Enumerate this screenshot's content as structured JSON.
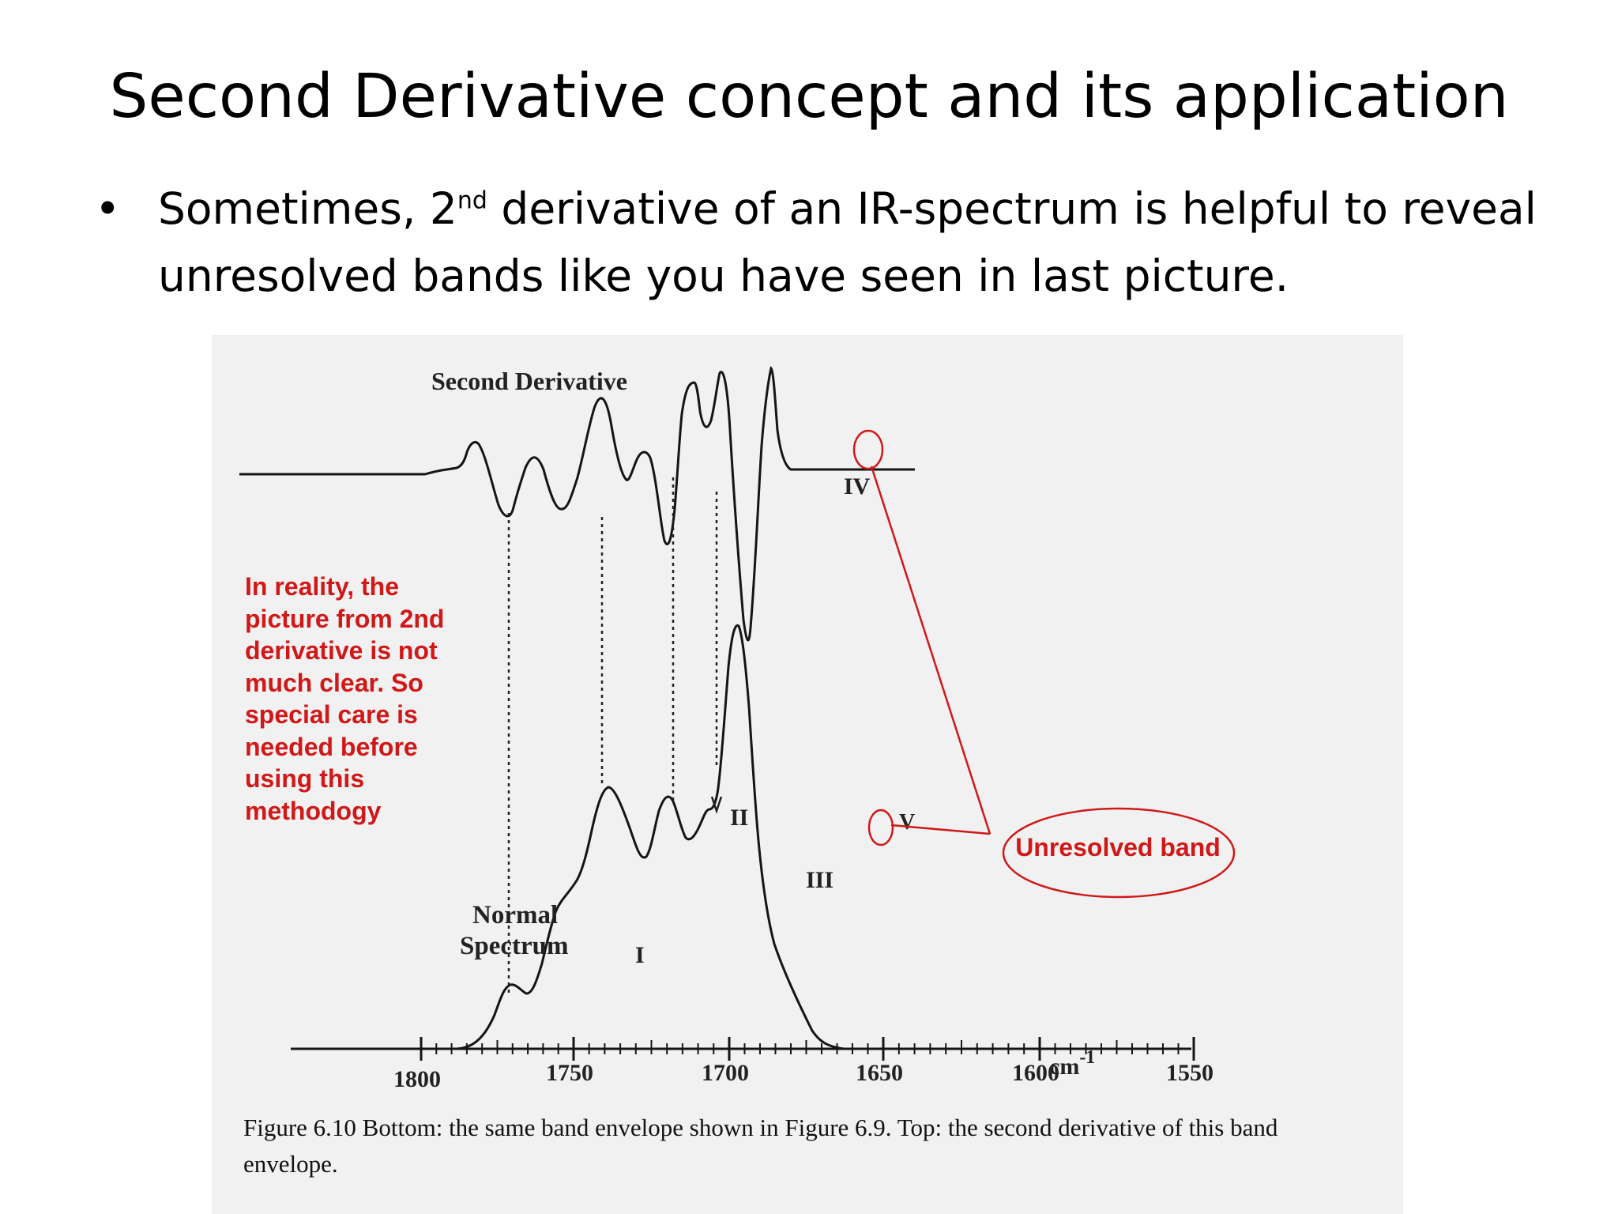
{
  "slide": {
    "title": "Second Derivative concept and its application",
    "bullet": {
      "marker": "•",
      "text_before": "Sometimes, 2",
      "superscript": "nd",
      "text_after": " derivative of an IR-spectrum is helpful to reveal unresolved bands like you have seen in last picture."
    }
  },
  "figure": {
    "top_label": "Second Derivative",
    "bottom_label_line1": "Normal",
    "bottom_label_line2": "Spectrum",
    "band_labels": [
      "I",
      "II",
      "III",
      "IV",
      "V"
    ],
    "x_axis_ticks": [
      "1800",
      "1750",
      "1700",
      "1650",
      "1600",
      "1550"
    ],
    "x_axis_unit": "cm",
    "x_axis_unit_exponent": "-1",
    "caption": "Figure 6.10 Bottom: the same band envelope shown in Figure 6.9. Top: the second derivative of this band envelope."
  },
  "annotations": {
    "note": "In reality, the picture from 2nd derivative is not much clear. So special care is needed before using this methodogy",
    "callout": "Unresolved band",
    "accent_color": "#d01818"
  }
}
